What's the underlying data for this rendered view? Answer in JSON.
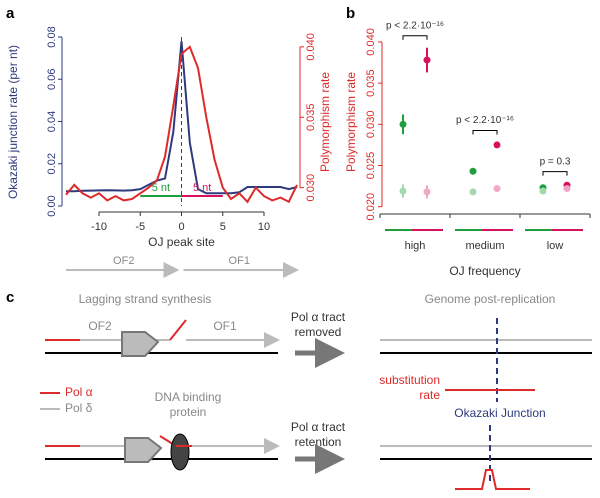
{
  "chart_data": [
    {
      "type": "line",
      "panel_label": "a",
      "x": [
        -14,
        -13,
        -12,
        -11,
        -10,
        -9,
        -8,
        -7,
        -6,
        -5,
        -4,
        -3,
        -2,
        -1,
        0,
        1,
        2,
        3,
        4,
        5,
        6,
        7,
        8,
        9,
        10,
        11,
        12,
        13,
        14
      ],
      "xlim": [
        -14,
        14
      ],
      "xticks": [
        -10,
        -5,
        0,
        5,
        10
      ],
      "xlabel": "OJ peak site",
      "ylabel": "Okazaki junction rate (per nt)",
      "y2label": "Polymorphism rate",
      "ylim": [
        0,
        0.08
      ],
      "yticks": [
        {
          "value": 0,
          "label": "0.00"
        },
        {
          "value": 0.02,
          "label": "0.02"
        },
        {
          "value": 0.04,
          "label": "0.04"
        },
        {
          "value": 0.06,
          "label": "0.06"
        },
        {
          "value": 0.08,
          "label": "0.08"
        }
      ],
      "y2lim": [
        0.0287,
        0.0407
      ],
      "y2ticks": [
        {
          "value": 0.03,
          "label": "0.030"
        },
        {
          "value": 0.035,
          "label": "0.035"
        },
        {
          "value": 0.04,
          "label": "0.040"
        }
      ],
      "series": [
        {
          "color": "#2e3a7e",
          "values": [
            0.007,
            0.007,
            0.0072,
            0.0073,
            0.0074,
            0.0075,
            0.0074,
            0.0073,
            0.0075,
            0.008,
            0.01,
            0.012,
            0.013,
            0.035,
            0.078,
            0.03,
            0.008,
            0.006,
            0.006,
            0.006,
            0.006,
            0.0065,
            0.009,
            0.009,
            0.009,
            0.009,
            0.009,
            0.008,
            0.009
          ]
        },
        {
          "color": "#dd2a2a",
          "axis": "y2",
          "values": [
            0.0295,
            0.0302,
            0.0296,
            0.0293,
            0.0296,
            0.0291,
            0.0294,
            0.0291,
            0.0292,
            0.0296,
            0.03,
            0.0305,
            0.0322,
            0.0358,
            0.0395,
            0.04,
            0.0385,
            0.035,
            0.032,
            0.03,
            0.0292,
            0.0296,
            0.029,
            0.03,
            0.0294,
            0.0291,
            0.0293,
            0.029,
            0.0302
          ]
        }
      ],
      "annotations": [
        "5 nt",
        "5 nt"
      ],
      "flank_labels": [
        "OF2",
        "OF1"
      ]
    },
    {
      "type": "scatter",
      "panel_label": "b",
      "categories": [
        "high",
        "medium",
        "low"
      ],
      "xlabel": "OJ frequency",
      "ylabel": "Polymorphism rate",
      "ylim": [
        0.0196,
        0.0406
      ],
      "yticks": [
        {
          "value": 0.02,
          "label": "0.020"
        },
        {
          "value": 0.025,
          "label": "0.025"
        },
        {
          "value": 0.03,
          "label": "0.030"
        },
        {
          "value": 0.035,
          "label": "0.035"
        },
        {
          "value": 0.04,
          "label": "0.040"
        }
      ],
      "series": [
        {
          "color": "#1e9e3c",
          "values": [
            0.03,
            0.0243,
            0.0223
          ],
          "errors": [
            0.0012,
            0.0003,
            0.0002
          ]
        },
        {
          "color": "#d6115e",
          "values": [
            0.0378,
            0.0275,
            0.0226
          ],
          "errors": [
            0.0015,
            0.0003,
            0.0002
          ]
        },
        {
          "color": "#a3d9ad",
          "values": [
            0.0219,
            0.0218,
            0.0219
          ],
          "errors": [
            0.0008,
            0.0003,
            0.0002
          ]
        },
        {
          "color": "#f0a8c6",
          "values": [
            0.0218,
            0.0222,
            0.0222
          ],
          "errors": [
            0.0008,
            0.0002,
            0.0002
          ]
        }
      ],
      "annotations": [
        "p < 2.2·10⁻¹⁶",
        "p < 2.2·10⁻¹⁶",
        "p = 0.3"
      ]
    }
  ],
  "diagram": {
    "panel_label": "c",
    "left_title": "Lagging strand synthesis",
    "right_title": "Genome post-replication",
    "flank_labels": [
      "OF2",
      "OF1"
    ],
    "legend": [
      "Pol α",
      "Pol δ"
    ],
    "protein_label": [
      "DNA binding",
      "protein"
    ],
    "step1": [
      "Pol α tract",
      "removed"
    ],
    "step2": [
      "Pol α tract",
      "retention"
    ],
    "substitution_label": [
      "substitution",
      "rate"
    ],
    "junction_label": "Okazaki Junction"
  }
}
